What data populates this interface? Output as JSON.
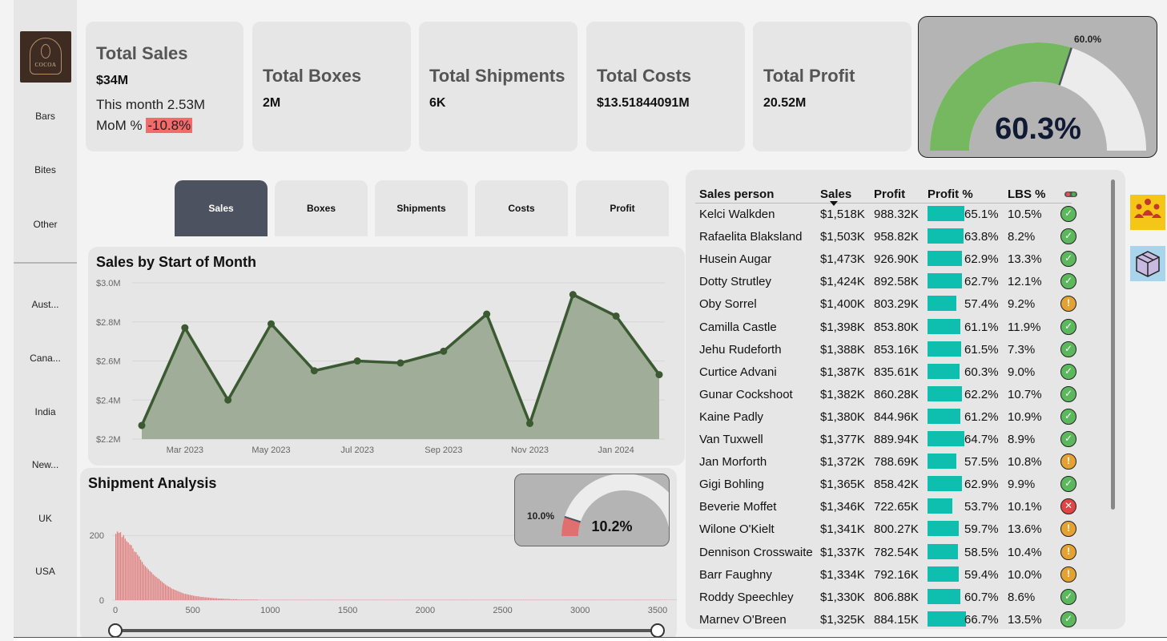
{
  "sidebar": {
    "products": [
      "Bars",
      "Bites",
      "Other"
    ],
    "countries": [
      "Aust...",
      "Cana...",
      "India",
      "New...",
      "UK",
      "USA"
    ],
    "logo_text": "COCOA"
  },
  "kpis": {
    "sales": {
      "title": "Total Sales",
      "value": "$34M",
      "month": "This month 2.53M",
      "mom_label": "MoM %",
      "mom_value": "-10.8%"
    },
    "boxes": {
      "title": "Total Boxes",
      "value": "2M"
    },
    "shipments": {
      "title": "Total Shipments",
      "value": "6K"
    },
    "costs": {
      "title": "Total Costs",
      "value": "$13.51844091M"
    },
    "profit": {
      "title": "Total Profit",
      "value": "20.52M"
    }
  },
  "profit_gauge": {
    "value_label": "60.3%",
    "target_label": "60.0%",
    "value": 60.3,
    "target": 60.0,
    "fill_color": "#76b860",
    "track_color": "#ececec"
  },
  "tabs": [
    {
      "label": "Sales",
      "active": true
    },
    {
      "label": "Boxes",
      "active": false
    },
    {
      "label": "Shipments",
      "active": false
    },
    {
      "label": "Costs",
      "active": false
    },
    {
      "label": "Profit",
      "active": false
    }
  ],
  "sales_chart_title": "Sales by Start of Month",
  "shipment_title": "Shipment Analysis",
  "ship_gauge": {
    "value_label": "10.2%",
    "target_label": "10.0%",
    "value": 10.2,
    "target": 10.0,
    "fill_color": "#e07070"
  },
  "chart_data": [
    {
      "type": "area",
      "title": "Sales by Start of Month",
      "x": [
        "Feb 2023",
        "Mar 2023",
        "Apr 2023",
        "May 2023",
        "Jun 2023",
        "Jul 2023",
        "Aug 2023",
        "Sep 2023",
        "Oct 2023",
        "Nov 2023",
        "Dec 2023",
        "Jan 2024",
        "Feb 2024"
      ],
      "x_tick_labels": [
        "Mar 2023",
        "May 2023",
        "Jul 2023",
        "Sep 2023",
        "Nov 2023",
        "Jan 2024"
      ],
      "values": [
        2.27,
        2.77,
        2.4,
        2.79,
        2.55,
        2.6,
        2.59,
        2.65,
        2.84,
        2.28,
        2.94,
        2.83,
        2.53
      ],
      "y_tick_labels": [
        "$2.2M",
        "$2.4M",
        "$2.6M",
        "$2.8M",
        "$3.0M"
      ],
      "ylim": [
        2.2,
        3.0
      ],
      "line_color": "#3b5a32",
      "fill_color": "#a0ad98"
    },
    {
      "type": "bar",
      "title": "Shipment Analysis",
      "x_tick_labels": [
        "0",
        "500",
        "1000",
        "1500",
        "2000",
        "2500",
        "3000",
        "3500"
      ],
      "y_tick_labels": [
        "0",
        "200"
      ],
      "xlim": [
        0,
        3500
      ],
      "ylim": [
        0,
        265
      ],
      "bin_width": 10,
      "bin_start": 0,
      "values": [
        205,
        212,
        208,
        210,
        195,
        200,
        190,
        182,
        178,
        172,
        170,
        160,
        150,
        148,
        140,
        135,
        125,
        118,
        110,
        105,
        100,
        95,
        90,
        86,
        80,
        76,
        72,
        68,
        65,
        60,
        56,
        52,
        48,
        45,
        42,
        40,
        36,
        34,
        32,
        30,
        28,
        26,
        24,
        22,
        20,
        19,
        18,
        17,
        16,
        15,
        14,
        13,
        12,
        12,
        11,
        10,
        10,
        9,
        9,
        8,
        8,
        7,
        7,
        6,
        6,
        6,
        5,
        5,
        5,
        5,
        4,
        4,
        4,
        4,
        3,
        3,
        3,
        3,
        3,
        2,
        2,
        2,
        2,
        2,
        2,
        2,
        2,
        2,
        2,
        2,
        2,
        2,
        1,
        1,
        1,
        1,
        1,
        1,
        1,
        1,
        1,
        1,
        1,
        1,
        1,
        1,
        1,
        1,
        1,
        1,
        1,
        1,
        1,
        1,
        1,
        1,
        1,
        1,
        1,
        1,
        1,
        1,
        1,
        1,
        1,
        1,
        1,
        1,
        1,
        1,
        1,
        1,
        1,
        1,
        1,
        1,
        1,
        1,
        1,
        1,
        1,
        1,
        1,
        1,
        1,
        1,
        1,
        1,
        1,
        1,
        1,
        1,
        1,
        1,
        1,
        1,
        1,
        1,
        1,
        1,
        1,
        1,
        1,
        1,
        1,
        1,
        1,
        1,
        1,
        1,
        1,
        1,
        1,
        1,
        1,
        1,
        1,
        1,
        1,
        1,
        1,
        1,
        1,
        1,
        1,
        1,
        1,
        1,
        1,
        1,
        1,
        1,
        1,
        1,
        1,
        1,
        1,
        1,
        1,
        1,
        1,
        1,
        1,
        1,
        1,
        1,
        1,
        1,
        1,
        1,
        1,
        1,
        1,
        1,
        1,
        1,
        1,
        1,
        1,
        1,
        1,
        1,
        1,
        1,
        1,
        1,
        1,
        1,
        1,
        1,
        1,
        1,
        1,
        1,
        1,
        1,
        1,
        1,
        1,
        1,
        1,
        1,
        1,
        1,
        1,
        1,
        1,
        1,
        1,
        1,
        1,
        1,
        1,
        1,
        1,
        1,
        1,
        1,
        1,
        1,
        1,
        1,
        1,
        1,
        1,
        1,
        1,
        1,
        1,
        1,
        1,
        1,
        1,
        1,
        1,
        1,
        1,
        1,
        1,
        1,
        1,
        1,
        1,
        1,
        1,
        1,
        1,
        1,
        1,
        1,
        1,
        1,
        1,
        1,
        1,
        1,
        1,
        1,
        1,
        1,
        1,
        1,
        1,
        1,
        1,
        1,
        1,
        1,
        1,
        1,
        1,
        1,
        1,
        1,
        1,
        1,
        1,
        1,
        1,
        1,
        1,
        1,
        1,
        1,
        1,
        1,
        1,
        1,
        1,
        1,
        1,
        1,
        1,
        1,
        1,
        1,
        1,
        1,
        1,
        1,
        1,
        1,
        1,
        1,
        1,
        1,
        1,
        1,
        1,
        1,
        1,
        1,
        1,
        1,
        1,
        1,
        1,
        1,
        1,
        1,
        1,
        1,
        1,
        1,
        1,
        1,
        1,
        1,
        1,
        1,
        1,
        1,
        1
      ],
      "bar_color": "#e07b7b"
    }
  ],
  "table": {
    "headers": [
      "Sales person",
      "Sales",
      "Profit",
      "Profit %",
      "LBS %"
    ],
    "rows": [
      {
        "name": "Kelci Walkden",
        "sales": "$1,518K",
        "profit": "988.32K",
        "pct": "65.1%",
        "pct_value": 65.1,
        "lbs": "10.5%",
        "status": "ok"
      },
      {
        "name": "Rafaelita Blaksland",
        "sales": "$1,503K",
        "profit": "958.82K",
        "pct": "63.8%",
        "pct_value": 63.8,
        "lbs": "8.2%",
        "status": "ok"
      },
      {
        "name": "Husein Augar",
        "sales": "$1,473K",
        "profit": "926.90K",
        "pct": "62.9%",
        "pct_value": 62.9,
        "lbs": "13.3%",
        "status": "ok"
      },
      {
        "name": "Dotty Strutley",
        "sales": "$1,424K",
        "profit": "892.58K",
        "pct": "62.7%",
        "pct_value": 62.7,
        "lbs": "12.1%",
        "status": "ok"
      },
      {
        "name": "Oby Sorrel",
        "sales": "$1,400K",
        "profit": "803.29K",
        "pct": "57.4%",
        "pct_value": 57.4,
        "lbs": "9.2%",
        "status": "warn"
      },
      {
        "name": "Camilla Castle",
        "sales": "$1,398K",
        "profit": "853.80K",
        "pct": "61.1%",
        "pct_value": 61.1,
        "lbs": "11.9%",
        "status": "ok"
      },
      {
        "name": "Jehu Rudeforth",
        "sales": "$1,388K",
        "profit": "853.16K",
        "pct": "61.5%",
        "pct_value": 61.5,
        "lbs": "7.3%",
        "status": "ok"
      },
      {
        "name": "Curtice Advani",
        "sales": "$1,387K",
        "profit": "835.61K",
        "pct": "60.3%",
        "pct_value": 60.3,
        "lbs": "9.0%",
        "status": "ok"
      },
      {
        "name": "Gunar Cockshoot",
        "sales": "$1,382K",
        "profit": "860.28K",
        "pct": "62.2%",
        "pct_value": 62.2,
        "lbs": "10.7%",
        "status": "ok"
      },
      {
        "name": "Kaine Padly",
        "sales": "$1,380K",
        "profit": "844.96K",
        "pct": "61.2%",
        "pct_value": 61.2,
        "lbs": "10.9%",
        "status": "ok"
      },
      {
        "name": "Van Tuxwell",
        "sales": "$1,377K",
        "profit": "889.94K",
        "pct": "64.7%",
        "pct_value": 64.7,
        "lbs": "8.9%",
        "status": "ok"
      },
      {
        "name": "Jan Morforth",
        "sales": "$1,372K",
        "profit": "788.69K",
        "pct": "57.5%",
        "pct_value": 57.5,
        "lbs": "10.8%",
        "status": "warn"
      },
      {
        "name": "Gigi Bohling",
        "sales": "$1,365K",
        "profit": "858.42K",
        "pct": "62.9%",
        "pct_value": 62.9,
        "lbs": "9.9%",
        "status": "ok"
      },
      {
        "name": "Beverie Moffet",
        "sales": "$1,346K",
        "profit": "722.65K",
        "pct": "53.7%",
        "pct_value": 53.7,
        "lbs": "10.1%",
        "status": "bad"
      },
      {
        "name": "Wilone O'Kielt",
        "sales": "$1,341K",
        "profit": "800.27K",
        "pct": "59.7%",
        "pct_value": 59.7,
        "lbs": "13.6%",
        "status": "warn"
      },
      {
        "name": "Dennison Crosswaite",
        "sales": "$1,337K",
        "profit": "782.54K",
        "pct": "58.5%",
        "pct_value": 58.5,
        "lbs": "10.4%",
        "status": "warn"
      },
      {
        "name": "Barr Faughny",
        "sales": "$1,334K",
        "profit": "792.16K",
        "pct": "59.4%",
        "pct_value": 59.4,
        "lbs": "10.0%",
        "status": "warn"
      },
      {
        "name": "Roddy Speechley",
        "sales": "$1,330K",
        "profit": "806.88K",
        "pct": "60.7%",
        "pct_value": 60.7,
        "lbs": "8.6%",
        "status": "ok"
      },
      {
        "name": "Marnev O'Breen",
        "sales": "$1,325K",
        "profit": "884.15K",
        "pct": "66.7%",
        "pct_value": 66.7,
        "lbs": "13.5%",
        "status": "ok"
      }
    ]
  },
  "side_buttons": [
    {
      "icon": "team-icon",
      "color": "#f5c518"
    },
    {
      "icon": "box-icon",
      "color": "#a8d4ec"
    }
  ],
  "status_icons": {
    "ok": "check-circle-icon",
    "warn": "exclamation-circle-icon",
    "bad": "x-circle-icon"
  },
  "status_glyphs": {
    "ok": "✓",
    "warn": "!",
    "bad": "✕"
  }
}
